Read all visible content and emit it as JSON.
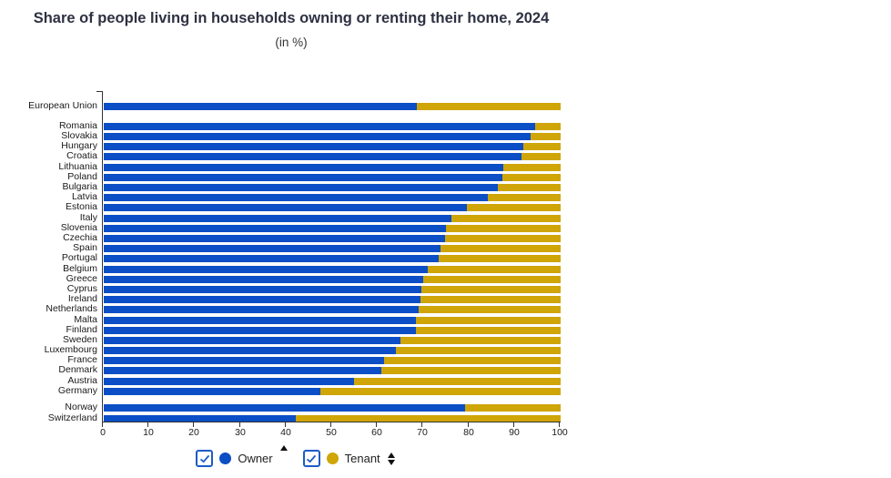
{
  "header": {
    "title": "Share of people living in households owning or renting their home, 2024",
    "subtitle": "(in %)"
  },
  "colors": {
    "owner": "#0b4ec6",
    "tenant": "#cfa508",
    "title_text": "#2d3142",
    "axis": "#333333",
    "checkbox": "#1d5bc8"
  },
  "legend": {
    "items": [
      {
        "label": "Owner",
        "checked": true,
        "sort_icon": "sort-ascending"
      },
      {
        "label": "Tenant",
        "checked": true,
        "sort_icon": "sort-both"
      }
    ]
  },
  "chart_data": {
    "type": "bar",
    "orientation": "horizontal",
    "stacked": true,
    "title": "Share of people living in households owning or renting their home, 2024",
    "subtitle": "(in %)",
    "xlabel": "",
    "ylabel": "",
    "xlim": [
      0,
      100
    ],
    "x_ticks": [
      0,
      10,
      20,
      30,
      40,
      50,
      60,
      70,
      80,
      90,
      100
    ],
    "series_names": [
      "Owner",
      "Tenant"
    ],
    "rows": [
      {
        "label": "European Union",
        "section": "eu-aggregate",
        "owner": 68.6,
        "tenant": 31.4
      },
      {
        "label": "Romania",
        "section": "eu-members",
        "owner": 94.5,
        "tenant": 5.5
      },
      {
        "label": "Slovakia",
        "section": "eu-members",
        "owner": 93.5,
        "tenant": 6.5
      },
      {
        "label": "Hungary",
        "section": "eu-members",
        "owner": 91.9,
        "tenant": 8.1
      },
      {
        "label": "Croatia",
        "section": "eu-members",
        "owner": 91.5,
        "tenant": 8.5
      },
      {
        "label": "Lithuania",
        "section": "eu-members",
        "owner": 87.5,
        "tenant": 12.5
      },
      {
        "label": "Poland",
        "section": "eu-members",
        "owner": 87.3,
        "tenant": 12.7
      },
      {
        "label": "Bulgaria",
        "section": "eu-members",
        "owner": 86.2,
        "tenant": 13.8
      },
      {
        "label": "Latvia",
        "section": "eu-members",
        "owner": 84.0,
        "tenant": 16.0
      },
      {
        "label": "Estonia",
        "section": "eu-members",
        "owner": 79.5,
        "tenant": 20.5
      },
      {
        "label": "Italy",
        "section": "eu-members",
        "owner": 76.0,
        "tenant": 24.0
      },
      {
        "label": "Slovenia",
        "section": "eu-members",
        "owner": 75.0,
        "tenant": 25.0
      },
      {
        "label": "Czechia",
        "section": "eu-members",
        "owner": 74.8,
        "tenant": 25.2
      },
      {
        "label": "Spain",
        "section": "eu-members",
        "owner": 73.8,
        "tenant": 26.2
      },
      {
        "label": "Portugal",
        "section": "eu-members",
        "owner": 73.4,
        "tenant": 26.6
      },
      {
        "label": "Belgium",
        "section": "eu-members",
        "owner": 70.9,
        "tenant": 29.1
      },
      {
        "label": "Greece",
        "section": "eu-members",
        "owner": 69.9,
        "tenant": 30.1
      },
      {
        "label": "Cyprus",
        "section": "eu-members",
        "owner": 69.5,
        "tenant": 30.5
      },
      {
        "label": "Ireland",
        "section": "eu-members",
        "owner": 69.3,
        "tenant": 30.7
      },
      {
        "label": "Netherlands",
        "section": "eu-members",
        "owner": 68.9,
        "tenant": 31.1
      },
      {
        "label": "Malta",
        "section": "eu-members",
        "owner": 68.4,
        "tenant": 31.6
      },
      {
        "label": "Finland",
        "section": "eu-members",
        "owner": 68.3,
        "tenant": 31.7
      },
      {
        "label": "Sweden",
        "section": "eu-members",
        "owner": 65.0,
        "tenant": 35.0
      },
      {
        "label": "Luxembourg",
        "section": "eu-members",
        "owner": 63.9,
        "tenant": 36.1
      },
      {
        "label": "France",
        "section": "eu-members",
        "owner": 61.4,
        "tenant": 38.6
      },
      {
        "label": "Denmark",
        "section": "eu-members",
        "owner": 60.7,
        "tenant": 39.3
      },
      {
        "label": "Austria",
        "section": "eu-members",
        "owner": 54.7,
        "tenant": 45.3
      },
      {
        "label": "Germany",
        "section": "eu-members",
        "owner": 47.4,
        "tenant": 52.6
      },
      {
        "label": "Norway",
        "section": "efta",
        "owner": 79.0,
        "tenant": 21.0
      },
      {
        "label": "Switzerland",
        "section": "efta",
        "owner": 42.0,
        "tenant": 58.0
      }
    ]
  }
}
